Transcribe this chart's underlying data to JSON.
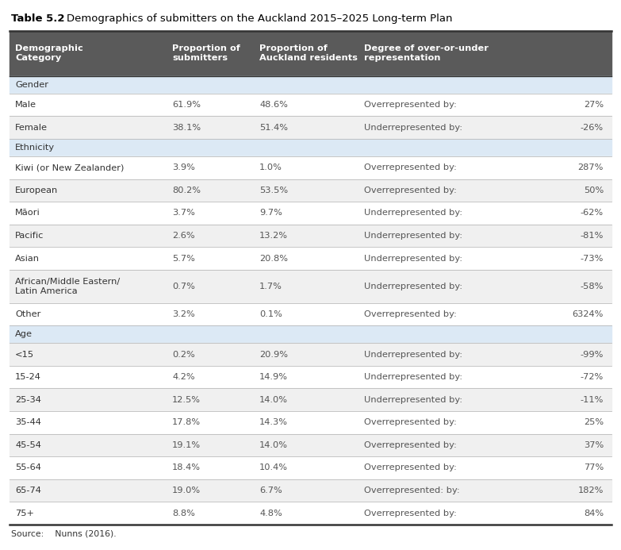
{
  "title_prefix": "Table 5.2",
  "title_text": "Demographics of submitters on the Auckland 2015–2025 Long-term Plan",
  "col_headers": [
    "Demographic\nCategory",
    "Proportion of\nsubmitters",
    "Proportion of\nAuckland residents",
    "Degree of over-or-under\nrepresentation"
  ],
  "header_bg": "#5a5a5a",
  "header_fg": "#ffffff",
  "section_bg": "#dce9f5",
  "row_bg_alt": "#f0f0f0",
  "row_bg_main": "#ffffff",
  "source_text": "Source:    Nunns (2016).",
  "sections": [
    {
      "section_name": "Gender",
      "rows": [
        [
          "Male",
          "61.9%",
          "48.6%",
          "Overrepresented by:",
          "27%"
        ],
        [
          "Female",
          "38.1%",
          "51.4%",
          "Underrepresented by:",
          "-26%"
        ]
      ]
    },
    {
      "section_name": "Ethnicity",
      "rows": [
        [
          "Kiwi (or New Zealander)",
          "3.9%",
          "1.0%",
          "Overrepresented by:",
          "287%"
        ],
        [
          "European",
          "80.2%",
          "53.5%",
          "Overrepresented by:",
          "50%"
        ],
        [
          "Māori",
          "3.7%",
          "9.7%",
          "Underrepresented by:",
          "-62%"
        ],
        [
          "Pacific",
          "2.6%",
          "13.2%",
          "Underrepresented by:",
          "-81%"
        ],
        [
          "Asian",
          "5.7%",
          "20.8%",
          "Underrepresented by:",
          "-73%"
        ],
        [
          "African/Middle Eastern/\nLatin America",
          "0.7%",
          "1.7%",
          "Underrepresented by:",
          "-58%"
        ],
        [
          "Other",
          "3.2%",
          "0.1%",
          "Overrepresented by:",
          "6324%"
        ]
      ]
    },
    {
      "section_name": "Age",
      "rows": [
        [
          "<15",
          "0.2%",
          "20.9%",
          "Underrepresented by:",
          "-99%"
        ],
        [
          "15-24",
          "4.2%",
          "14.9%",
          "Underrepresented by:",
          "-72%"
        ],
        [
          "25-34",
          "12.5%",
          "14.0%",
          "Underrepresented by:",
          "-11%"
        ],
        [
          "35-44",
          "17.8%",
          "14.3%",
          "Overrepresented by:",
          "25%"
        ],
        [
          "45-54",
          "19.1%",
          "14.0%",
          "Overrepresented by:",
          "37%"
        ],
        [
          "55-64",
          "18.4%",
          "10.4%",
          "Overrepresented by:",
          "77%"
        ],
        [
          "65-74",
          "19.0%",
          "6.7%",
          "Overrepresented: by:",
          "182%"
        ],
        [
          "75+",
          "8.8%",
          "4.8%",
          "Overrepresented by:",
          "84%"
        ]
      ]
    }
  ],
  "fig_width": 7.83,
  "fig_height": 6.93,
  "dpi": 100
}
